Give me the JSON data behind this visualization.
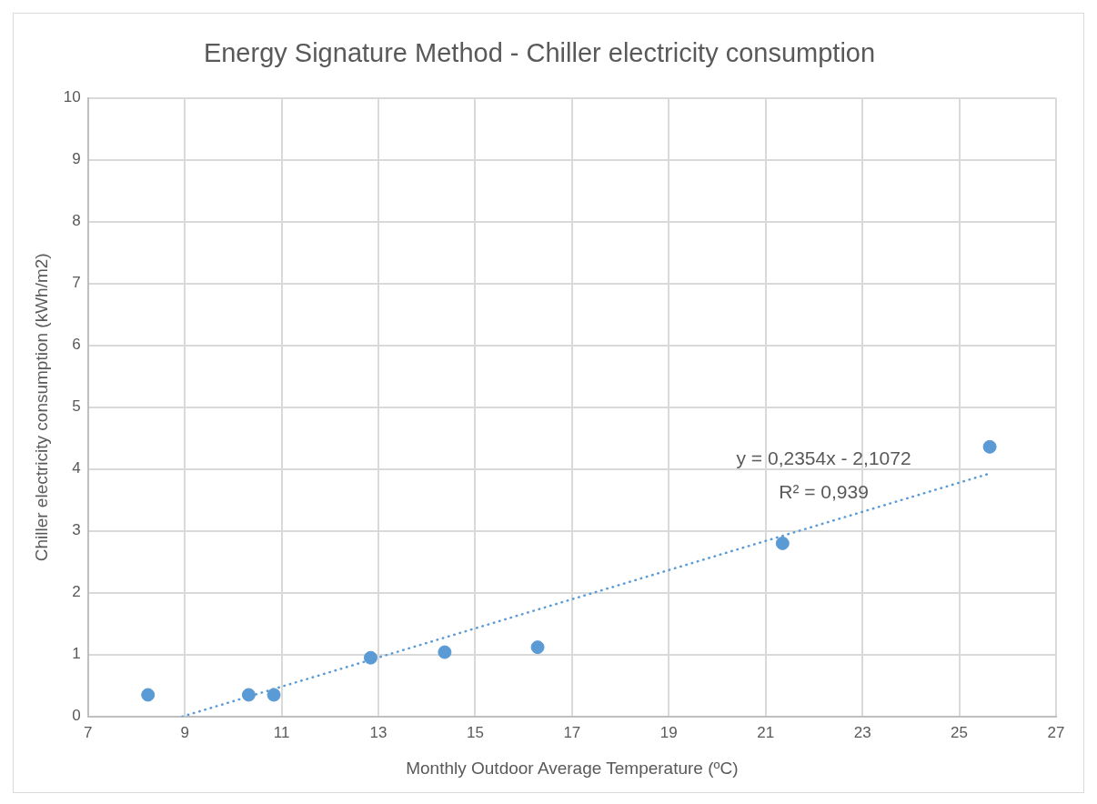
{
  "chart_data": {
    "type": "scatter",
    "title": "Energy Signature Method - Chiller electricity consumption",
    "xlabel": "Monthly Outdoor Average Temperature (ºC)",
    "ylabel": "Chiller electricity consumption (kWh/m2)",
    "xlim": [
      7,
      27
    ],
    "xticks": [
      7,
      9,
      11,
      13,
      15,
      17,
      19,
      21,
      23,
      25,
      27
    ],
    "ylim": [
      0,
      10
    ],
    "yticks": [
      0,
      1,
      2,
      3,
      4,
      5,
      6,
      7,
      8,
      9,
      10
    ],
    "grid": true,
    "legend": false,
    "marker": "circle",
    "annotations": [
      "y = 0,2354x - 2,1072",
      "R² = 0,939"
    ],
    "series": [
      {
        "type": "scatter",
        "color": "#5b9bd5",
        "x": [
          8.24,
          10.32,
          10.84,
          12.84,
          14.37,
          16.29,
          21.35,
          25.63
        ],
        "values": [
          0.35,
          0.35,
          0.35,
          0.95,
          1.04,
          1.12,
          2.8,
          4.36
        ]
      },
      {
        "type": "line",
        "color": "#5b9bd5",
        "marker": "none",
        "line_style": "dotted",
        "x": [
          8.95,
          25.63
        ],
        "values": [
          0,
          3.93
        ]
      }
    ]
  }
}
